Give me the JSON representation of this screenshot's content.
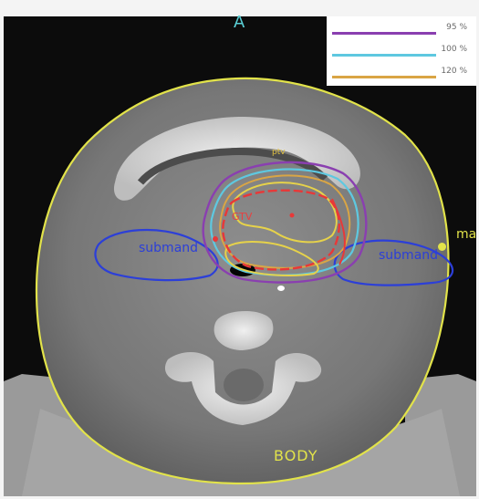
{
  "image": {
    "orientation_label": "A",
    "structures": {
      "body": "BODY",
      "submandibular_left": "submand",
      "submandibular_right": "submand",
      "marker": "ma",
      "gtv": "GTV",
      "iso_label": "ptv"
    }
  },
  "legend": {
    "items": [
      {
        "label": "95 %",
        "color": "#8a3fb0"
      },
      {
        "label": "100 %",
        "color": "#5ec8e0"
      },
      {
        "label": "120 %",
        "color": "#d9a545"
      }
    ]
  },
  "colors": {
    "body_contour": "#e2e34a",
    "submandibular": "#2c3fd8",
    "gtv": "#e83838",
    "isodose_red": "#e83838",
    "isodose_yellow": "#e6d24a"
  }
}
